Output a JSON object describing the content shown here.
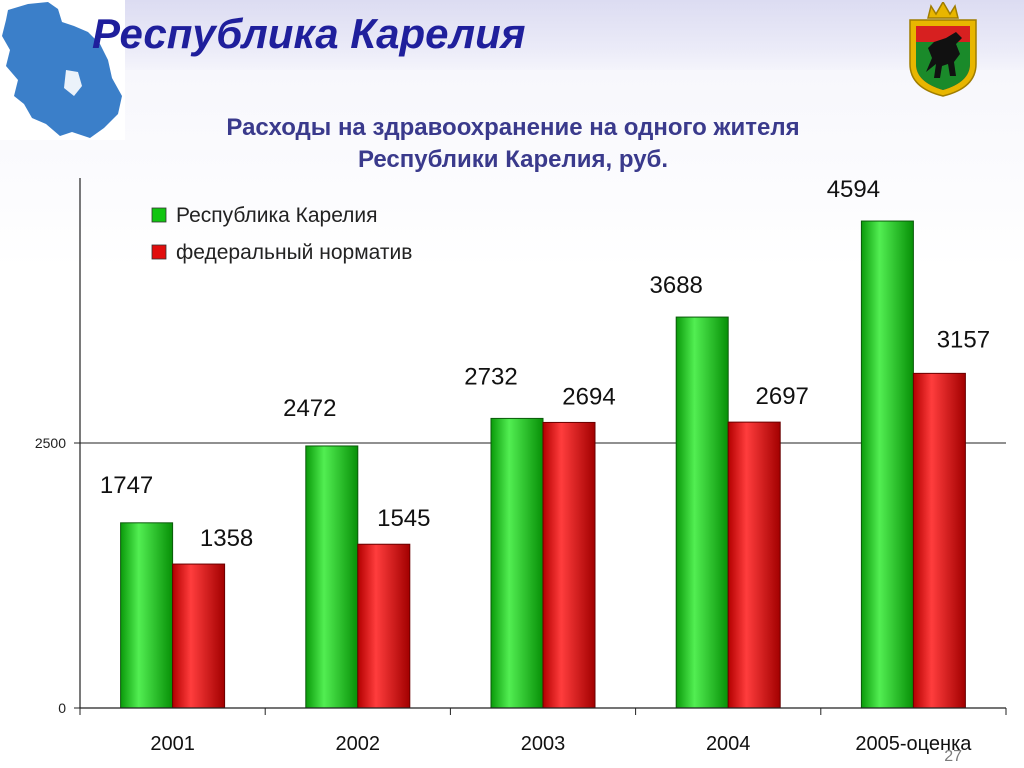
{
  "header": {
    "title": "Республика Карелия"
  },
  "slide_number": "27",
  "colors": {
    "header_title": "#1f1f9c",
    "map": "#3b7fc9",
    "series_green": "#11c511",
    "series_red": "#e10d0d",
    "chart_title": "#3a3a8c"
  },
  "chart_data": {
    "type": "bar",
    "title_lines": [
      "Расходы на здравоохранение на одного жителя",
      "Республики Карелия, руб."
    ],
    "categories": [
      "2001",
      "2002",
      "2003",
      "2004",
      "2005-оценка"
    ],
    "series": [
      {
        "name": "Республика Карелия",
        "color": "green",
        "values": [
          1747,
          2472,
          2732,
          3688,
          4594
        ]
      },
      {
        "name": "федеральный норматив",
        "color": "red",
        "values": [
          1358,
          1545,
          2694,
          2697,
          3157
        ]
      }
    ],
    "ylim": [
      0,
      5000
    ],
    "yticks": [
      "0",
      "2500"
    ],
    "ytick_values": [
      0,
      2500
    ],
    "grid": "horizontal at 2500",
    "legend": "top-left",
    "data_labels": true
  }
}
